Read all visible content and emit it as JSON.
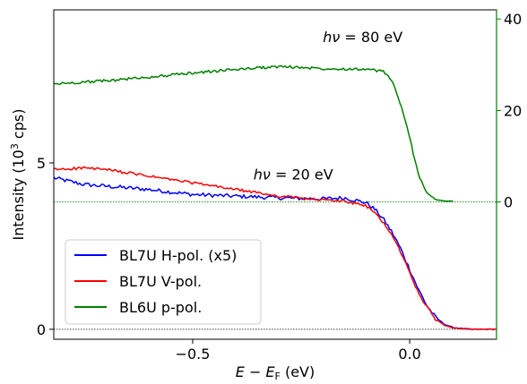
{
  "chart_data": {
    "type": "line",
    "xlabel": "E − E_F (eV)",
    "ylabel": "Intensity (10³ cps)",
    "xlim": [
      -0.82,
      0.2
    ],
    "ylim_left": [
      -0.3,
      9.6
    ],
    "ylim_right": [
      -30,
      42
    ],
    "x_ticks": [
      -0.5,
      0.0
    ],
    "x_tick_labels": [
      "−0.5",
      "0.0"
    ],
    "y_left_ticks": [
      0,
      5
    ],
    "y_left_tick_labels": [
      "0",
      "5"
    ],
    "y_right_ticks": [
      0,
      20,
      40
    ],
    "y_right_tick_labels": [
      "0",
      "20",
      "40"
    ],
    "right_axis_color": "#008000",
    "baselines": [
      {
        "axis": "left",
        "y": 0,
        "color": "#000000"
      },
      {
        "axis": "right",
        "y": 0,
        "color": "#008000"
      }
    ],
    "annotations": [
      {
        "text": "hν = 80 eV",
        "x": -0.2,
        "y_right": 35
      },
      {
        "text": "hν = 20 eV",
        "x": -0.36,
        "y_left": 4.5
      }
    ],
    "legend": {
      "position": "lower-left"
    },
    "series": [
      {
        "name": "BL7U H-pol. (x5)",
        "color": "#0000ff",
        "axis": "left",
        "noise": 0.06,
        "x": [
          -0.82,
          -0.75,
          -0.7,
          -0.6,
          -0.5,
          -0.4,
          -0.3,
          -0.2,
          -0.15,
          -0.1,
          -0.08,
          -0.06,
          -0.04,
          -0.02,
          0.0,
          0.02,
          0.04,
          0.06,
          0.08,
          0.1,
          0.14,
          0.2
        ],
        "y": [
          4.55,
          4.35,
          4.3,
          4.2,
          4.05,
          4.0,
          3.95,
          3.92,
          3.95,
          3.8,
          3.6,
          3.3,
          2.9,
          2.4,
          1.8,
          1.2,
          0.7,
          0.35,
          0.15,
          0.05,
          0.0,
          0.0
        ]
      },
      {
        "name": "BL7U V-pol.",
        "color": "#ff0000",
        "axis": "left",
        "noise": 0.04,
        "x": [
          -0.82,
          -0.75,
          -0.7,
          -0.6,
          -0.5,
          -0.4,
          -0.3,
          -0.2,
          -0.15,
          -0.1,
          -0.08,
          -0.06,
          -0.04,
          -0.02,
          0.0,
          0.02,
          0.04,
          0.06,
          0.08,
          0.1,
          0.14,
          0.2
        ],
        "y": [
          4.8,
          4.85,
          4.8,
          4.6,
          4.4,
          4.2,
          4.0,
          3.88,
          3.85,
          3.7,
          3.5,
          3.2,
          2.8,
          2.3,
          1.7,
          1.1,
          0.65,
          0.3,
          0.12,
          0.04,
          0.0,
          0.0
        ]
      },
      {
        "name": "BL6U p-pol.",
        "color": "#008000",
        "axis": "right",
        "noise": 0.3,
        "x": [
          -0.82,
          -0.7,
          -0.6,
          -0.5,
          -0.4,
          -0.3,
          -0.2,
          -0.1,
          -0.06,
          -0.04,
          -0.02,
          0.0,
          0.02,
          0.04,
          0.06,
          0.08,
          0.1
        ],
        "y": [
          25.8,
          26.5,
          27.3,
          28.2,
          29.0,
          29.6,
          29.2,
          29.0,
          28.5,
          26.5,
          21.0,
          14.0,
          6.0,
          2.0,
          0.5,
          0.2,
          0.2
        ]
      }
    ]
  }
}
